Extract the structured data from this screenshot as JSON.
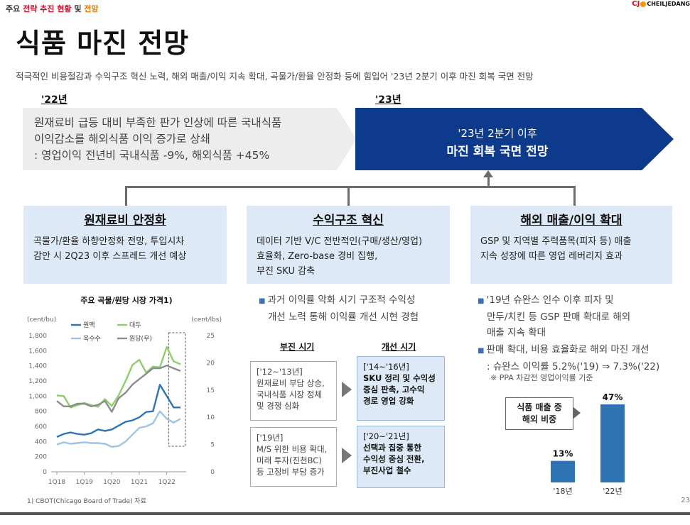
{
  "header": {
    "breadcrumb_a": "주요",
    "breadcrumb_b": "전략 추진 현황",
    "breadcrumb_c": "및",
    "breadcrumb_d": "전망",
    "logo_prefix": "CJ",
    "logo_text": "CHEILJEDANG"
  },
  "page": {
    "title": "식품 마진 전망",
    "subtitle": "적극적인 비용절감과 수익구조 혁신 노력, 해외 매출/이익 지속 확대, 곡물가/환율 안정화 등에 힘입어 '23년 2분기 이후 마진 회복 국면 전망",
    "page_number": "23"
  },
  "timeline": {
    "year_a": "'22년",
    "year_b": "'23년",
    "box_a": [
      "원재료비 급등 대비 부족한 판가 인상에 따른 국내식품",
      "이익감소를 해외식품 이익 증가로 상쇄",
      ": 영업이익 전년비 국내식품 -9%, 해외식품 +45%"
    ],
    "box_b_line1": "'23년 2분기 이후",
    "box_b_line2": "마진 회복 국면 전망"
  },
  "panels": [
    {
      "title": "원재료비 안정화",
      "lines": [
        "곡물가/환율 하향안정화 전망, 투입시차",
        "감안 시 2Q23 이후 스프레드 개선 예상"
      ]
    },
    {
      "title": "수익구조 혁신",
      "lines": [
        "데이터 기반 V/C 전반적인(구매/생산/영업)",
        "효율화, Zero-base 경비 집행,",
        "부진 SKU 감축"
      ]
    },
    {
      "title": "해외 매출/이익 확대",
      "lines": [
        "GSP 및 지역별 주력품목(피자 등) 매출",
        "지속 성장에 따른 영업 레버리지 효과"
      ]
    }
  ],
  "middle": {
    "bullet": [
      "과거 이익률 악화 시기 구조적 수익성",
      "개선 노력 통해 이익률 개선 시현 경험"
    ],
    "col_a": "부진 시기",
    "col_b": "개선 시기",
    "rows": [
      {
        "left": [
          "['12~'13년]",
          "원재료비 부담 상승,",
          "국내식품 시장 정체",
          "및 경쟁 심화"
        ],
        "right_period": "['14~'16년]",
        "right": [
          "SKU 정리 및 수익성",
          "중심 판촉, 고수익",
          "경로 영업 강화"
        ]
      },
      {
        "left": [
          "['19년]",
          "M/S 위한 비용 확대,",
          "미래 투자(진천BC)",
          "등 고정비 부담 증가"
        ],
        "right_period": "['20~'21년]",
        "right": [
          "선택과 집중 통한",
          "수익성 중심 전환,",
          "부진사업 철수"
        ]
      }
    ]
  },
  "right": {
    "bullet1": [
      "'19년 슈완스 인수 이후 피자 및",
      "만두/치킨 등 GSP 판매 확대로 해외",
      "매출 지속 확대"
    ],
    "bullet2": [
      "판매 확대, 비용 효율화로 해외 마진 개선",
      ": 슈완스 이익률 5.2%('19) ⇒ 7.3%('22)"
    ],
    "note": "※ PPA 차감전 영업이익률 기준",
    "callout": [
      "식품 매출 중",
      "해외 비중"
    ],
    "bar_chart": {
      "type": "bar",
      "categories": [
        "'18년",
        "'22년"
      ],
      "values": [
        13,
        47
      ],
      "value_labels": [
        "13%",
        "47%"
      ],
      "color": "#2e74b5"
    }
  },
  "chart_data": {
    "type": "line",
    "title": "주요 곡물/원당 시장 가격1)",
    "left_unit": "(cent/bu)",
    "right_unit": "(cent/lbs)",
    "x_ticks": [
      "1Q18",
      "1Q19",
      "1Q20",
      "1Q21",
      "1Q22"
    ],
    "y_left": {
      "ticks": [
        0,
        200,
        400,
        600,
        800,
        1000,
        1200,
        1400,
        1600,
        1800
      ],
      "range": [
        0,
        1800
      ]
    },
    "y_right": {
      "ticks": [
        0,
        5,
        10,
        15,
        20,
        25
      ],
      "range": [
        0,
        25
      ]
    },
    "x_count": 19,
    "highlight_range": [
      17,
      18
    ],
    "series": [
      {
        "name": "원맥",
        "color": "#2e74b5",
        "axis": "left",
        "values": [
          460,
          500,
          520,
          500,
          490,
          510,
          560,
          540,
          560,
          610,
          660,
          680,
          720,
          790,
          800,
          1150,
          1000,
          850,
          850
        ]
      },
      {
        "name": "대두",
        "color": "#8fce6d",
        "axis": "left",
        "values": [
          1010,
          1000,
          850,
          880,
          910,
          880,
          860,
          960,
          870,
          1010,
          1200,
          1410,
          1480,
          1310,
          1390,
          1380,
          1650,
          1460,
          1420
        ]
      },
      {
        "name": "옥수수",
        "color": "#9dc3e6",
        "axis": "left",
        "values": [
          360,
          390,
          370,
          380,
          390,
          380,
          380,
          370,
          330,
          340,
          400,
          490,
          580,
          600,
          640,
          800,
          700,
          650,
          700
        ]
      },
      {
        "name": "원당(우)",
        "color": "#8c8c8c",
        "axis": "right",
        "values": [
          13.0,
          12.0,
          12.0,
          12.5,
          12.5,
          12.0,
          12.3,
          13.0,
          11.0,
          13.5,
          14.5,
          16.0,
          17.0,
          18.0,
          19.0,
          19.0,
          19.5,
          19.0,
          18.5
        ]
      }
    ],
    "footnote": "1) CBOT(Chicago Board of Trade) 자료"
  }
}
